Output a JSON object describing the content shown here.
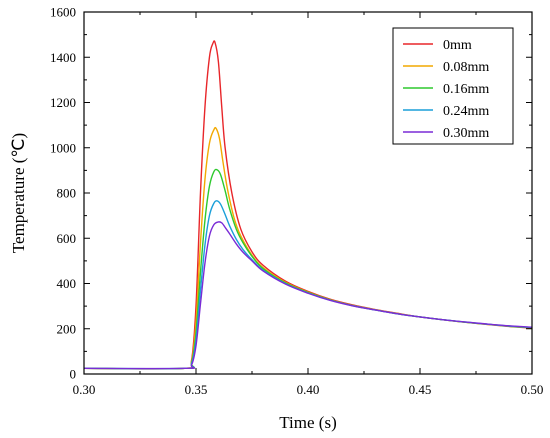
{
  "chart_data": {
    "type": "line",
    "title": "",
    "xlabel": "Time (s)",
    "ylabel": "Temperature (℃)",
    "xlim": [
      0.3,
      0.5
    ],
    "ylim": [
      0,
      1600
    ],
    "x_ticks": [
      0.3,
      0.35,
      0.4,
      0.45,
      0.5
    ],
    "x_tick_labels": [
      "0.30",
      "0.35",
      "0.40",
      "0.45",
      "0.50"
    ],
    "y_ticks": [
      0,
      200,
      400,
      600,
      800,
      1000,
      1200,
      1400,
      1600
    ],
    "y_tick_labels": [
      "0",
      "200",
      "400",
      "600",
      "800",
      "1000",
      "1200",
      "1400",
      "1600"
    ],
    "grid": false,
    "legend_position": "top-right",
    "series": [
      {
        "name": "0mm",
        "color": "#e8262a",
        "x": [
          0.3,
          0.345,
          0.348,
          0.35,
          0.352,
          0.354,
          0.356,
          0.3575,
          0.3585,
          0.36,
          0.3615,
          0.363,
          0.366,
          0.37,
          0.375,
          0.38,
          0.39,
          0.4,
          0.41,
          0.42,
          0.43,
          0.44,
          0.45,
          0.46,
          0.47,
          0.48,
          0.49,
          0.5
        ],
        "y": [
          25,
          25,
          60,
          300,
          800,
          1180,
          1400,
          1460,
          1465,
          1380,
          1180,
          1000,
          800,
          640,
          540,
          480,
          410,
          365,
          330,
          305,
          285,
          268,
          252,
          240,
          229,
          219,
          210,
          203
        ]
      },
      {
        "name": "0.08mm",
        "color": "#f2a900",
        "x": [
          0.3,
          0.345,
          0.348,
          0.35,
          0.352,
          0.354,
          0.356,
          0.358,
          0.359,
          0.3605,
          0.362,
          0.364,
          0.367,
          0.37,
          0.375,
          0.38,
          0.39,
          0.4,
          0.41,
          0.42,
          0.43,
          0.44,
          0.45,
          0.46,
          0.47,
          0.48,
          0.49,
          0.5
        ],
        "y": [
          25,
          25,
          55,
          230,
          580,
          860,
          1020,
          1080,
          1085,
          1040,
          940,
          820,
          690,
          610,
          525,
          470,
          405,
          362,
          328,
          303,
          284,
          267,
          252,
          240,
          229,
          219,
          211,
          204
        ]
      },
      {
        "name": "0.16mm",
        "color": "#2ec92e",
        "x": [
          0.3,
          0.345,
          0.348,
          0.35,
          0.352,
          0.354,
          0.356,
          0.358,
          0.3595,
          0.361,
          0.363,
          0.365,
          0.368,
          0.371,
          0.375,
          0.38,
          0.39,
          0.4,
          0.41,
          0.42,
          0.43,
          0.44,
          0.45,
          0.46,
          0.47,
          0.48,
          0.49,
          0.5
        ],
        "y": [
          25,
          25,
          50,
          180,
          450,
          680,
          830,
          895,
          902,
          880,
          810,
          730,
          640,
          580,
          520,
          465,
          402,
          360,
          327,
          302,
          283,
          266,
          252,
          240,
          229,
          220,
          211,
          205
        ]
      },
      {
        "name": "0.24mm",
        "color": "#1a9fd9",
        "x": [
          0.3,
          0.345,
          0.348,
          0.35,
          0.352,
          0.354,
          0.356,
          0.358,
          0.3595,
          0.361,
          0.363,
          0.365,
          0.368,
          0.371,
          0.375,
          0.38,
          0.39,
          0.4,
          0.41,
          0.42,
          0.43,
          0.44,
          0.45,
          0.46,
          0.47,
          0.48,
          0.49,
          0.5
        ],
        "y": [
          25,
          25,
          45,
          150,
          370,
          570,
          700,
          755,
          765,
          750,
          705,
          655,
          595,
          550,
          505,
          458,
          399,
          358,
          326,
          302,
          283,
          266,
          252,
          240,
          230,
          220,
          212,
          206
        ]
      },
      {
        "name": "0.30mm",
        "color": "#7a2bd6",
        "x": [
          0.3,
          0.345,
          0.348,
          0.35,
          0.352,
          0.354,
          0.356,
          0.358,
          0.36,
          0.3615,
          0.363,
          0.365,
          0.368,
          0.371,
          0.375,
          0.38,
          0.39,
          0.4,
          0.41,
          0.42,
          0.43,
          0.44,
          0.45,
          0.46,
          0.47,
          0.48,
          0.49,
          0.5
        ],
        "y": [
          25,
          25,
          40,
          125,
          310,
          490,
          610,
          660,
          672,
          668,
          648,
          620,
          575,
          538,
          500,
          455,
          397,
          357,
          325,
          301,
          283,
          266,
          252,
          240,
          230,
          221,
          213,
          207
        ]
      }
    ]
  }
}
